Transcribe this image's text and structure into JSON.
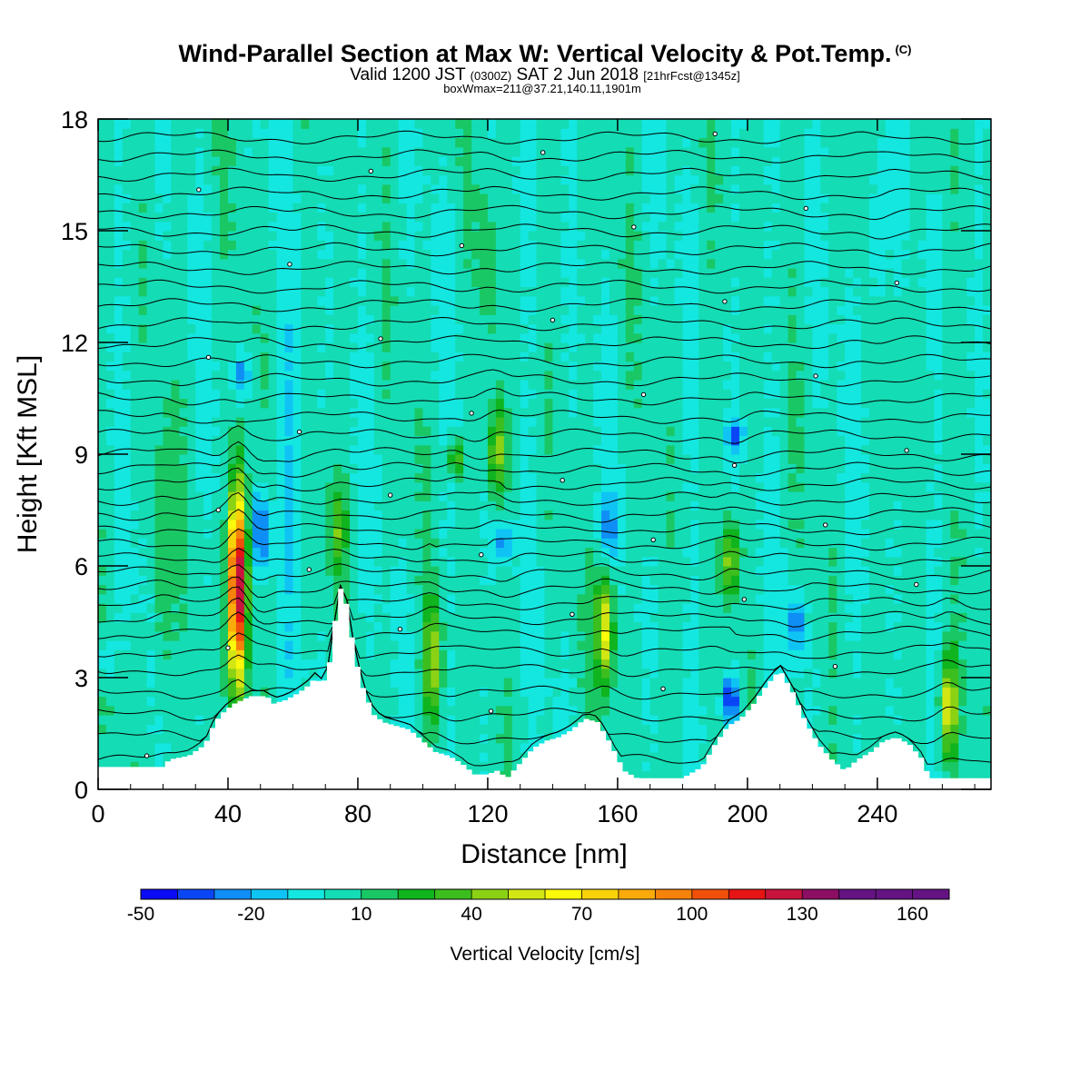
{
  "header": {
    "title": "Wind-Parallel Section at Max W: Vertical Velocity & Pot.Temp.",
    "title_mark": "(C)",
    "valid_prefix": "Valid 1200 JST",
    "valid_utc": "(0300Z)",
    "valid_date": "SAT 2 Jun 2018",
    "forecast_tag": "[21hrFcst@1345z]",
    "box_info": "boxWmax=211@37.21,140.11,1901m"
  },
  "colors": {
    "contour_line": "#000000",
    "terrain": "#ffffff",
    "background_field": "#1de8cf",
    "palette": [
      "#0a0af5",
      "#0a46f5",
      "#0f8ef5",
      "#0fc4f5",
      "#14e6e0",
      "#14dcb4",
      "#19c864",
      "#0fb41e",
      "#3cbe1e",
      "#8cd214",
      "#d2e614",
      "#fafa0a",
      "#fad20a",
      "#faaa0a",
      "#f5820a",
      "#f0500a",
      "#e61414",
      "#c8143c",
      "#8c0f64",
      "#641482"
    ]
  },
  "chart_data": {
    "type": "heatmap",
    "title": "Wind-Parallel Section at Max W: Vertical Velocity & Pot.Temp.",
    "xlabel": "Distance [nm]",
    "ylabel": "Height [Kft MSL]",
    "xlim": [
      0,
      275
    ],
    "ylim": [
      0,
      18
    ],
    "x_ticks": [
      0,
      40,
      80,
      120,
      160,
      200,
      240
    ],
    "x_tick_labels": [
      "0",
      "40",
      "80",
      "120",
      "160",
      "200",
      "240"
    ],
    "y_ticks": [
      0,
      3,
      6,
      9,
      12,
      15,
      18
    ],
    "y_tick_labels": [
      "0",
      "3",
      "6",
      "9",
      "12",
      "15",
      "18"
    ],
    "grid": false,
    "colorbar": {
      "title": "Vertical Velocity [cm/s]",
      "levels": [
        -50,
        -40,
        -30,
        -20,
        -10,
        0,
        10,
        20,
        30,
        40,
        50,
        60,
        70,
        80,
        90,
        100,
        110,
        120,
        130,
        140,
        150,
        160,
        170
      ],
      "tick_labels": [
        "-50",
        "-20",
        "10",
        "40",
        "70",
        "100",
        "130",
        "160"
      ],
      "tick_values": [
        -50,
        -20,
        10,
        40,
        70,
        100,
        130,
        160
      ]
    },
    "overlay": "Potential temperature contours (black lines)",
    "terrain_profile": {
      "x": [
        0,
        20,
        22,
        28,
        33,
        36,
        39,
        42,
        47,
        52,
        54,
        58,
        60,
        62,
        65,
        67,
        69,
        71,
        73,
        75,
        77,
        79,
        82,
        85,
        88,
        92,
        96,
        100,
        104,
        108,
        112,
        116,
        120,
        123,
        126,
        130,
        134,
        138,
        142,
        146,
        150,
        154,
        158,
        162,
        166,
        170,
        180,
        186,
        190,
        194,
        198,
        202,
        206,
        210,
        214,
        218,
        222,
        226,
        230,
        234,
        238,
        242,
        246,
        250,
        254,
        256,
        260,
        265,
        275
      ],
      "height": [
        0.6,
        0.6,
        0.8,
        0.9,
        1.2,
        1.8,
        2.1,
        2.3,
        2.5,
        2.5,
        2.3,
        2.4,
        2.5,
        2.6,
        2.8,
        3.0,
        2.8,
        3.2,
        4.5,
        5.5,
        4.8,
        3.6,
        2.6,
        2.0,
        1.8,
        1.7,
        1.6,
        1.3,
        1.0,
        0.9,
        0.7,
        0.4,
        0.4,
        0.5,
        0.3,
        0.7,
        1.1,
        1.3,
        1.4,
        1.6,
        1.9,
        1.8,
        1.2,
        0.5,
        0.3,
        0.3,
        0.3,
        0.6,
        1.2,
        1.7,
        1.9,
        2.3,
        2.8,
        3.2,
        2.6,
        1.8,
        1.2,
        0.8,
        0.5,
        0.8,
        1.0,
        1.3,
        1.4,
        1.2,
        0.8,
        0.3,
        0.3,
        0.3,
        0.3
      ]
    },
    "features": [
      {
        "x": 43,
        "z_bottom": 2.3,
        "z_top": 8.7,
        "w_max": 140,
        "sign": "updraft"
      },
      {
        "x": 50,
        "z_bottom": 5.5,
        "z_top": 8.3,
        "w_max": -40,
        "sign": "downdraft"
      },
      {
        "x": 44,
        "z_bottom": 10.5,
        "z_top": 11.8,
        "w_max": -30,
        "sign": "downdraft"
      },
      {
        "x": 74,
        "z_bottom": 5.5,
        "z_top": 8.5,
        "w_max": 30,
        "sign": "updraft"
      },
      {
        "x": 103,
        "z_bottom": 1.5,
        "z_top": 5.5,
        "w_max": 45,
        "sign": "updraft"
      },
      {
        "x": 110,
        "z_bottom": 8.3,
        "z_top": 9.5,
        "w_max": 35,
        "sign": "updraft"
      },
      {
        "x": 123,
        "z_bottom": 7.6,
        "z_top": 10.5,
        "w_max": 45,
        "sign": "updraft"
      },
      {
        "x": 125,
        "z_bottom": 6.0,
        "z_top": 7.2,
        "w_max": -30,
        "sign": "downdraft"
      },
      {
        "x": 156,
        "z_bottom": 2.5,
        "z_top": 6.0,
        "w_max": 60,
        "sign": "updraft"
      },
      {
        "x": 157,
        "z_bottom": 6.2,
        "z_top": 7.8,
        "w_max": -30,
        "sign": "downdraft"
      },
      {
        "x": 195,
        "z_bottom": 1.7,
        "z_top": 3.2,
        "w_max": -45,
        "sign": "downdraft"
      },
      {
        "x": 195,
        "z_bottom": 5.0,
        "z_top": 7.3,
        "w_max": 45,
        "sign": "updraft"
      },
      {
        "x": 196,
        "z_bottom": 9.0,
        "z_top": 10.0,
        "w_max": -35,
        "sign": "downdraft"
      },
      {
        "x": 215,
        "z_bottom": 3.5,
        "z_top": 5.5,
        "w_max": -30,
        "sign": "downdraft"
      },
      {
        "x": 262,
        "z_bottom": 0.4,
        "z_top": 4.0,
        "w_max": 60,
        "sign": "updraft"
      },
      {
        "x": 60,
        "z_bottom": 1.5,
        "z_top": 16.0,
        "w_max": -15,
        "sign": "downdraft"
      },
      {
        "x": 120,
        "z_bottom": 11.5,
        "z_top": 16.5,
        "w_max": 15,
        "sign": "updraft"
      },
      {
        "x": 240,
        "z_bottom": 12.0,
        "z_top": 17.5,
        "w_max": -20,
        "sign": "downdraft"
      },
      {
        "x": 20,
        "z_bottom": 1.0,
        "z_top": 10.0,
        "w_max": 20,
        "sign": "updraft"
      },
      {
        "x": 2,
        "z_bottom": 2.5,
        "z_top": 4.5,
        "w_max": -15,
        "sign": "downdraft"
      }
    ],
    "isentrope_base_heights": [
      0.8,
      1.4,
      2.0,
      2.6,
      3.2,
      3.7,
      4.2,
      4.6,
      5.0,
      5.4,
      5.8,
      6.2,
      6.6,
      7.0,
      7.4,
      7.8,
      8.2,
      8.6,
      9.0,
      9.5,
      10.0,
      10.5,
      11.0,
      11.5,
      12.0,
      12.5,
      13.0,
      13.5,
      14.0,
      14.5,
      15.0,
      15.5,
      16.0,
      16.5,
      17.0,
      17.5
    ]
  }
}
